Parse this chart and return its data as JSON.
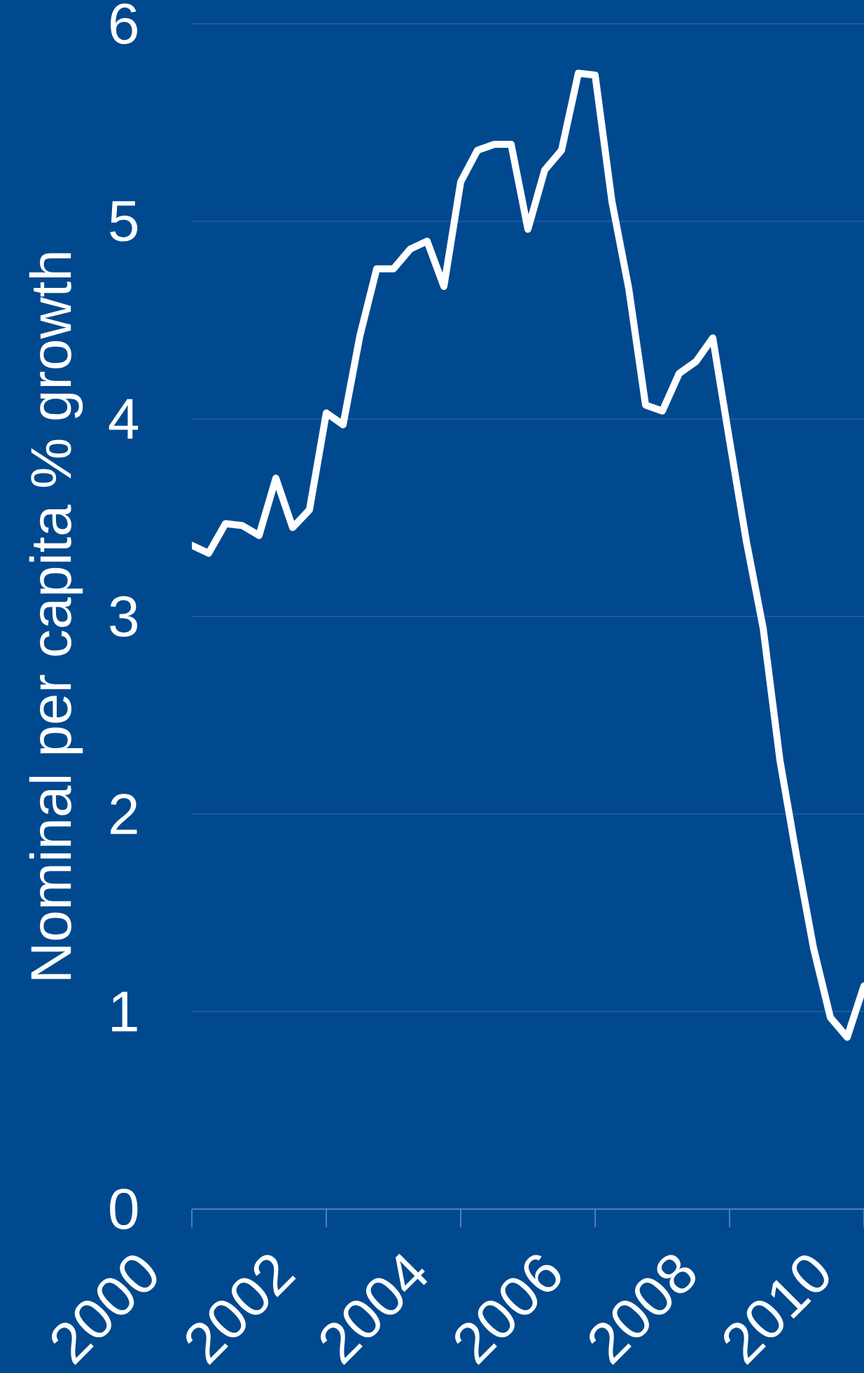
{
  "chart_data": {
    "type": "line",
    "ylabel": "Nominal per capita % growth",
    "x": [
      2000,
      2000.25,
      2000.5,
      2000.75,
      2001,
      2001.25,
      2001.5,
      2001.75,
      2002,
      2002.25,
      2002.5,
      2002.75,
      2003,
      2003.25,
      2003.5,
      2003.75,
      2004,
      2004.25,
      2004.5,
      2004.75,
      2005,
      2005.25,
      2005.5,
      2005.75,
      2006,
      2006.25,
      2006.5,
      2006.75,
      2007,
      2007.25,
      2007.5,
      2007.75,
      2008,
      2008.25,
      2008.5,
      2008.75,
      2009,
      2009.25,
      2009.5,
      2009.75,
      2010
    ],
    "values": [
      3.36,
      3.32,
      3.47,
      3.46,
      3.41,
      3.7,
      3.45,
      3.54,
      4.03,
      3.97,
      4.42,
      4.76,
      4.76,
      4.86,
      4.9,
      4.67,
      5.2,
      5.36,
      5.39,
      5.39,
      4.96,
      5.26,
      5.36,
      5.75,
      5.74,
      5.1,
      4.66,
      4.07,
      4.04,
      4.23,
      4.29,
      4.41,
      3.89,
      3.38,
      2.94,
      2.27,
      1.78,
      1.32,
      0.97,
      0.87,
      1.13
    ],
    "color": "#ffffff",
    "line_style": "solid",
    "xlim": [
      2000,
      2010
    ],
    "ylim": [
      0,
      6
    ],
    "xticks": [
      2000,
      2002,
      2004,
      2006,
      2008,
      2010
    ],
    "yticks": [
      0,
      1,
      2,
      3,
      4,
      5,
      6
    ],
    "grid": "y"
  }
}
